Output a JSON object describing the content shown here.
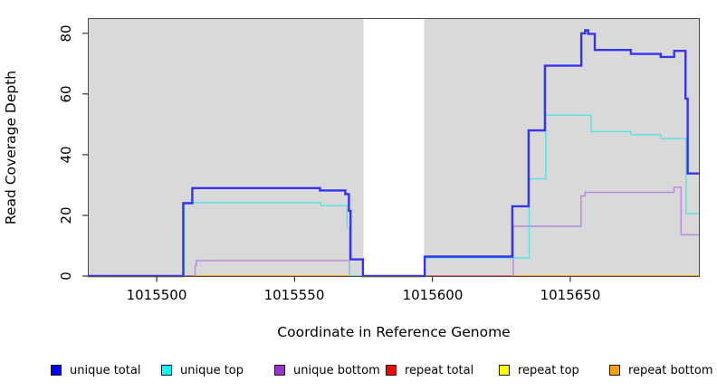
{
  "figure": {
    "y_axis": {
      "label": "Read Coverage Depth",
      "ticks": [
        "0",
        "20",
        "40",
        "60",
        "80"
      ]
    },
    "x_axis": {
      "label": "Coordinate in Reference Genome",
      "ticks": [
        "1015500",
        "1015550",
        "1015600",
        "1015650"
      ]
    }
  },
  "legend": {
    "items": [
      {
        "label": "unique total",
        "color": "#0000ff"
      },
      {
        "label": "unique top",
        "color": "#00ffff"
      },
      {
        "label": "unique bottom",
        "color": "#9933cc"
      },
      {
        "label": "repeat total",
        "color": "#ff0000"
      },
      {
        "label": "repeat top",
        "color": "#ffff00"
      },
      {
        "label": "repeat bottom",
        "color": "#ffa200"
      }
    ]
  },
  "chart_data": {
    "type": "line",
    "subtype": "step-coverage",
    "title": "",
    "xlabel": "Coordinate in Reference Genome",
    "ylabel": "Read Coverage Depth",
    "x_range": [
      1015475,
      1015697
    ],
    "y_range": [
      0,
      85
    ],
    "x_tick_values": [
      1015500,
      1015550,
      1015600,
      1015650
    ],
    "y_tick_values": [
      0,
      20,
      40,
      60,
      80
    ],
    "grid": false,
    "legend_position": "bottom",
    "plot_background": "#d9d9d9",
    "border_color": "#4c4c4c",
    "masked_region": {
      "x1": 1015575,
      "x2": 1015597,
      "color": "#ffffff"
    },
    "draw_order": [
      4,
      5,
      3,
      2,
      1,
      0
    ],
    "series": [
      {
        "name": "unique total",
        "line_color": "#3434f0",
        "width": 2.4,
        "segments": [
          {
            "points": [
              [
                1015475,
                0
              ],
              [
                1015509.6,
                24
              ],
              [
                1015512.9,
                29
              ],
              [
                1015559.2,
                28.2
              ],
              [
                1015568.4,
                27
              ],
              [
                1015569.7,
                21.5
              ],
              [
                1015570.3,
                5.5
              ],
              [
                1015574.8,
                0
              ],
              [
                1015597.2,
                6.4
              ],
              [
                1015629,
                23
              ],
              [
                1015634.9,
                48
              ],
              [
                1015640.8,
                69.3
              ],
              [
                1015654,
                80
              ],
              [
                1015655.4,
                81
              ],
              [
                1015656.5,
                79.8
              ],
              [
                1015658.9,
                74.5
              ],
              [
                1015672,
                73.2
              ],
              [
                1015682.8,
                72.2
              ],
              [
                1015687.7,
                74.2
              ],
              [
                1015691.8,
                58.5
              ],
              [
                1015692.6,
                33.8
              ]
            ],
            "end": 1015697
          }
        ]
      },
      {
        "name": "unique top",
        "line_color": "#53e3e3",
        "width": 1.4,
        "segments": [
          {
            "points": [
              [
                1015475,
                0
              ],
              [
                1015510,
                24.2
              ],
              [
                1015559.5,
                23.2
              ],
              [
                1015569.1,
                16
              ],
              [
                1015569.8,
                0
              ]
            ],
            "end": 1015574.8
          },
          {
            "points": [
              [
                1015597.2,
                6
              ],
              [
                1015635.1,
                32
              ],
              [
                1015641.1,
                53
              ],
              [
                1015657.6,
                47.6
              ],
              [
                1015672,
                46.6
              ],
              [
                1015682.8,
                45.3
              ],
              [
                1015692,
                20.6
              ]
            ],
            "end": 1015697
          }
        ]
      },
      {
        "name": "unique bottom",
        "line_color": "#b687dd",
        "width": 1.4,
        "segments": [
          {
            "points": [
              [
                1015513.4,
                0
              ],
              [
                1015513.9,
                3.5
              ],
              [
                1015514.4,
                5.1
              ],
              [
                1015569.9,
                0
              ]
            ],
            "end": 1015574.8
          },
          {
            "points": [
              [
                1015629,
                0
              ],
              [
                1015629.3,
                16.4
              ],
              [
                1015653.9,
                26.4
              ],
              [
                1015655.4,
                27.6
              ],
              [
                1015687.6,
                29.3
              ],
              [
                1015690.2,
                13.6
              ]
            ],
            "end": 1015697
          }
        ]
      },
      {
        "name": "repeat total",
        "line_color": "#d9537b",
        "width": 1.6,
        "segments": [
          {
            "points": [
              [
                1015509.6,
                0
              ]
            ],
            "end": 1015514
          },
          {
            "points": [
              [
                1015597.2,
                0
              ]
            ],
            "end": 1015629
          }
        ]
      },
      {
        "name": "repeat top",
        "line_color": "#ffe400",
        "width": 1.4,
        "segments": [
          {
            "points": [
              [
                1015475,
                0
              ]
            ],
            "end": 1015697
          }
        ]
      },
      {
        "name": "repeat bottom",
        "line_color": "#ff9203",
        "width": 1.6,
        "segments": [
          {
            "points": [
              [
                1015475,
                0
              ]
            ],
            "end": 1015697
          }
        ]
      }
    ]
  }
}
